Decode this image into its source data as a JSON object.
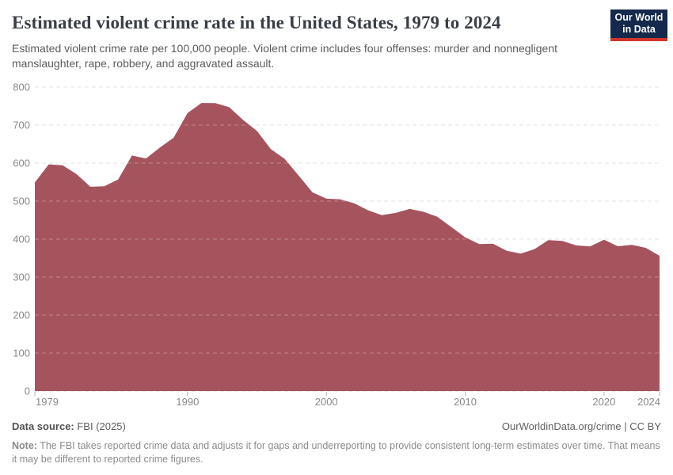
{
  "header": {
    "title": "Estimated violent crime rate in the United States, 1979 to 2024",
    "subtitle": "Estimated violent crime rate per 100,000 people. Violent crime includes four offenses: murder and nonnegligent manslaughter, rape, robbery, and aggravated assault.",
    "logo": {
      "line1": "Our World",
      "line2": "in Data"
    }
  },
  "colors": {
    "area_fill": "#a5545d",
    "gridline": "#dcdcdc",
    "gridline_over_area": "rgba(255,255,255,0.28)",
    "axis_label": "#898989",
    "axis_tick": "#b3b3b3",
    "title_text": "#3a3f47",
    "subtitle_text": "#5c5c5c",
    "logo_bg": "#14294b",
    "logo_accent": "#d0342c"
  },
  "chart_data": {
    "type": "area",
    "title": "Estimated violent crime rate in the United States, 1979 to 2024",
    "unit": "violent crimes per 100,000 people",
    "x": [
      1979,
      1980,
      1981,
      1982,
      1983,
      1984,
      1985,
      1986,
      1987,
      1988,
      1989,
      1990,
      1991,
      1992,
      1993,
      1994,
      1995,
      1996,
      1997,
      1998,
      1999,
      2000,
      2001,
      2002,
      2003,
      2004,
      2005,
      2006,
      2007,
      2008,
      2009,
      2010,
      2011,
      2012,
      2013,
      2014,
      2015,
      2016,
      2017,
      2018,
      2019,
      2020,
      2021,
      2022,
      2023,
      2024
    ],
    "series": [
      {
        "name": "United States",
        "values": [
          548.9,
          596.6,
          594.3,
          571.1,
          537.7,
          539.2,
          556.6,
          620.1,
          612.0,
          640.6,
          666.9,
          731.8,
          758.2,
          757.7,
          747.1,
          713.6,
          684.5,
          636.6,
          611.0,
          567.6,
          523.0,
          506.5,
          504.5,
          494.4,
          475.8,
          463.2,
          469.0,
          479.3,
          471.8,
          458.6,
          431.9,
          404.5,
          387.1,
          387.8,
          369.1,
          361.6,
          373.7,
          397.5,
          394.9,
          383.4,
          380.8,
          398.5,
          381.0,
          385.0,
          377.0,
          356.0
        ]
      }
    ],
    "xlabel": "",
    "ylabel": "",
    "ylim": [
      0,
      800
    ],
    "yticks": [
      0,
      100,
      200,
      300,
      400,
      500,
      600,
      700,
      800
    ],
    "xticks": [
      1979,
      1990,
      2000,
      2010,
      2020,
      2024
    ],
    "grid": "horizontal-dashed",
    "legend": "none"
  },
  "footer": {
    "datasource_label": "Data source:",
    "datasource_value": " FBI (2025)",
    "attribution": "OurWorldinData.org/crime | CC BY",
    "note_label": "Note:",
    "note_text": " The FBI takes reported crime data and adjusts it for gaps and underreporting to provide consistent long-term estimates over time. That means it may be different to reported crime figures."
  }
}
